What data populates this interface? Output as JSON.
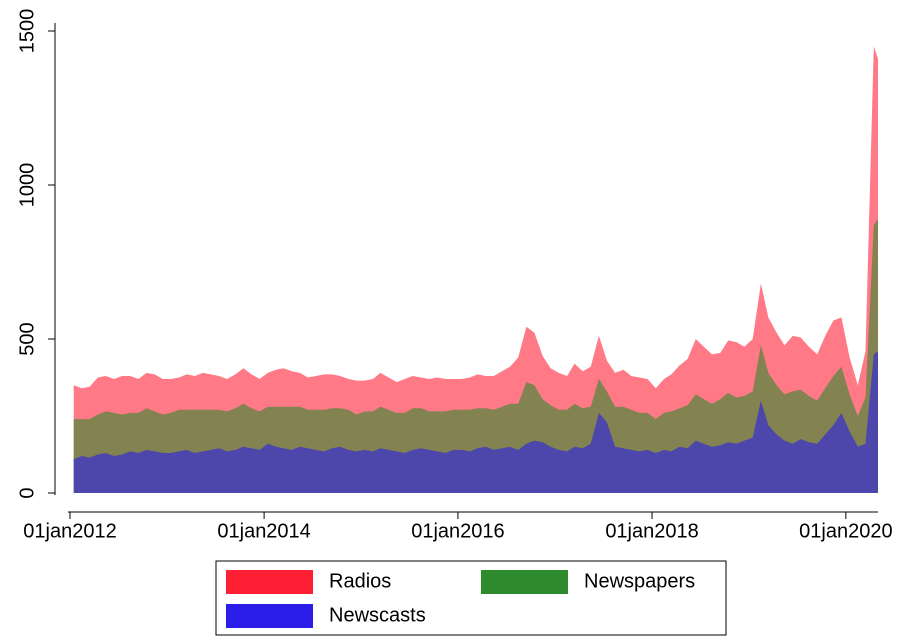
{
  "chart_data": {
    "type": "stacked-area",
    "x": [
      "2012-01-15",
      "2012-02-15",
      "2012-03-15",
      "2012-04-15",
      "2012-05-15",
      "2012-06-15",
      "2012-07-15",
      "2012-08-15",
      "2012-09-15",
      "2012-10-15",
      "2012-11-15",
      "2012-12-15",
      "2013-01-15",
      "2013-02-15",
      "2013-03-15",
      "2013-04-15",
      "2013-05-15",
      "2013-06-15",
      "2013-07-15",
      "2013-08-15",
      "2013-09-15",
      "2013-10-15",
      "2013-11-15",
      "2013-12-15",
      "2014-01-15",
      "2014-02-15",
      "2014-03-15",
      "2014-04-15",
      "2014-05-15",
      "2014-06-15",
      "2014-07-15",
      "2014-08-15",
      "2014-09-15",
      "2014-10-15",
      "2014-11-15",
      "2014-12-15",
      "2015-01-15",
      "2015-02-15",
      "2015-03-15",
      "2015-04-15",
      "2015-05-15",
      "2015-06-15",
      "2015-07-15",
      "2015-08-15",
      "2015-09-15",
      "2015-10-15",
      "2015-11-15",
      "2015-12-15",
      "2016-01-15",
      "2016-02-15",
      "2016-03-15",
      "2016-04-15",
      "2016-05-15",
      "2016-06-15",
      "2016-07-15",
      "2016-08-15",
      "2016-09-15",
      "2016-10-15",
      "2016-11-15",
      "2016-12-15",
      "2017-01-15",
      "2017-02-15",
      "2017-03-15",
      "2017-04-15",
      "2017-05-15",
      "2017-06-15",
      "2017-07-15",
      "2017-08-15",
      "2017-09-15",
      "2017-10-15",
      "2017-11-15",
      "2017-12-15",
      "2018-01-15",
      "2018-02-15",
      "2018-03-15",
      "2018-04-15",
      "2018-05-15",
      "2018-06-15",
      "2018-07-15",
      "2018-08-15",
      "2018-09-15",
      "2018-10-15",
      "2018-11-15",
      "2018-12-15",
      "2019-01-15",
      "2019-02-15",
      "2019-03-15",
      "2019-04-15",
      "2019-05-15",
      "2019-06-15",
      "2019-07-15",
      "2019-08-15",
      "2019-09-15",
      "2019-10-15",
      "2019-11-15",
      "2019-12-15",
      "2020-01-15",
      "2020-02-15",
      "2020-03-15",
      "2020-04-15",
      "2020-05-01"
    ],
    "series": [
      {
        "name": "Newscasts",
        "color": "#2a1ee8",
        "values": [
          110,
          120,
          115,
          125,
          130,
          120,
          125,
          135,
          130,
          140,
          135,
          130,
          130,
          135,
          140,
          130,
          135,
          140,
          145,
          135,
          140,
          150,
          145,
          140,
          160,
          150,
          145,
          140,
          150,
          145,
          140,
          135,
          145,
          150,
          140,
          135,
          140,
          135,
          145,
          140,
          135,
          130,
          140,
          145,
          140,
          135,
          130,
          140,
          140,
          135,
          145,
          150,
          140,
          145,
          150,
          140,
          160,
          170,
          165,
          150,
          140,
          135,
          150,
          145,
          160,
          260,
          230,
          150,
          145,
          140,
          135,
          140,
          130,
          140,
          135,
          150,
          145,
          170,
          160,
          150,
          155,
          165,
          160,
          170,
          180,
          300,
          220,
          190,
          170,
          160,
          175,
          165,
          160,
          190,
          220,
          260,
          200,
          150,
          160,
          450,
          460
        ]
      },
      {
        "name": "Newspapers",
        "color": "#2e8b2e",
        "values": [
          130,
          120,
          125,
          130,
          135,
          140,
          130,
          125,
          130,
          135,
          130,
          125,
          130,
          135,
          130,
          140,
          135,
          130,
          125,
          130,
          135,
          140,
          130,
          125,
          120,
          130,
          135,
          140,
          130,
          125,
          130,
          135,
          130,
          125,
          130,
          120,
          125,
          130,
          135,
          130,
          125,
          130,
          135,
          130,
          125,
          130,
          135,
          130,
          130,
          135,
          130,
          125,
          130,
          135,
          140,
          150,
          200,
          180,
          140,
          135,
          130,
          135,
          140,
          130,
          120,
          110,
          100,
          130,
          135,
          130,
          125,
          120,
          110,
          120,
          130,
          125,
          140,
          150,
          145,
          140,
          150,
          160,
          150,
          145,
          150,
          180,
          170,
          160,
          150,
          170,
          160,
          150,
          140,
          150,
          160,
          150,
          120,
          100,
          150,
          420,
          430
        ]
      },
      {
        "name": "Radios",
        "color": "#ff2035",
        "values": [
          110,
          100,
          105,
          120,
          115,
          110,
          125,
          120,
          110,
          115,
          120,
          115,
          110,
          105,
          115,
          110,
          120,
          115,
          110,
          105,
          110,
          115,
          110,
          105,
          110,
          120,
          125,
          115,
          110,
          105,
          110,
          115,
          110,
          105,
          100,
          110,
          100,
          105,
          110,
          105,
          100,
          110,
          105,
          100,
          105,
          110,
          105,
          100,
          100,
          105,
          110,
          105,
          110,
          115,
          120,
          150,
          180,
          170,
          140,
          120,
          120,
          110,
          130,
          120,
          130,
          140,
          100,
          110,
          120,
          110,
          115,
          110,
          100,
          110,
          120,
          140,
          150,
          180,
          170,
          160,
          150,
          170,
          180,
          160,
          170,
          200,
          180,
          170,
          160,
          180,
          170,
          160,
          150,
          170,
          180,
          160,
          120,
          100,
          150,
          580,
          520
        ]
      }
    ],
    "xlim": [
      "2012-01-01",
      "2020-05-01"
    ],
    "xticks": [
      {
        "value": "2012-01-01",
        "label": "01jan2012"
      },
      {
        "value": "2014-01-01",
        "label": "01jan2014"
      },
      {
        "value": "2016-01-01",
        "label": "01jan2016"
      },
      {
        "value": "2018-01-01",
        "label": "01jan2018"
      },
      {
        "value": "2020-01-01",
        "label": "01jan2020"
      }
    ],
    "ylim": [
      0,
      1500
    ],
    "yticks": [
      0,
      500,
      1000,
      1500
    ]
  }
}
